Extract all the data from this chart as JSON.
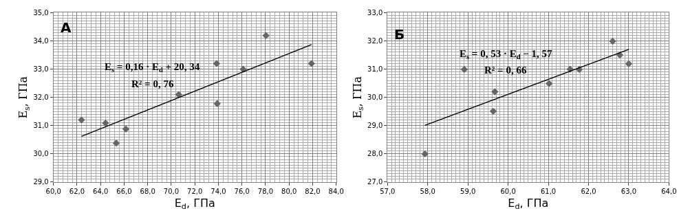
{
  "chart_data": [
    {
      "type": "scatter",
      "xlabel": "E$_{d}$, ГПа",
      "ylabel": "E$_{s}$, ГПа",
      "annotations": [
        "А",
        "E$_{s}$ = 0,16 · E$_{d}$ + 20, 34",
        "R² = 0, 76"
      ],
      "series": [
        {
          "color": "#666666",
          "marker": "diamond",
          "x": [
            62.38,
            64.42,
            65.33,
            66.15,
            70.63,
            73.85,
            73.9,
            76.1,
            78.04,
            81.9
          ],
          "values": [
            31.2,
            31.09,
            30.38,
            30.88,
            32.1,
            33.2,
            31.78,
            33.0,
            34.19,
            33.2
          ]
        },
        {
          "type": "line",
          "color": "#000000",
          "x": [
            62.38,
            81.9
          ],
          "values": [
            30.62,
            33.87
          ]
        }
      ],
      "xlim": [
        60,
        84
      ],
      "ylim": [
        29,
        35
      ],
      "xticks": [
        {
          "value": 60,
          "label": "60,0"
        },
        {
          "value": 62,
          "label": "62,0"
        },
        {
          "value": 64,
          "label": "64,0"
        },
        {
          "value": 66,
          "label": "66,0"
        },
        {
          "value": 68,
          "label": "68,0"
        },
        {
          "value": 70,
          "label": "70,0"
        },
        {
          "value": 72,
          "label": "72,0"
        },
        {
          "value": 74,
          "label": "74,0"
        },
        {
          "value": 76,
          "label": "76,0"
        },
        {
          "value": 78,
          "label": "78,0"
        },
        {
          "value": 80,
          "label": "80,0"
        },
        {
          "value": 82,
          "label": "82,0"
        },
        {
          "value": 84,
          "label": "84,0"
        }
      ],
      "yticks": [
        {
          "value": 29,
          "label": "29,0"
        },
        {
          "value": 30,
          "label": "30,0"
        },
        {
          "value": 31,
          "label": "31,0"
        },
        {
          "value": 32,
          "label": "32,0"
        },
        {
          "value": 33,
          "label": "33,0"
        },
        {
          "value": 34,
          "label": "34,0"
        },
        {
          "value": 35,
          "label": "35,0"
        }
      ],
      "grid": true
    },
    {
      "type": "scatter",
      "xlabel": "E$_{d}$, ГПа",
      "ylabel": "E$_{s}$, ГПа",
      "annotations": [
        "Б",
        "E$_{s}$ = 0, 53 · E$_{d}$ − 1, 57",
        "R² = 0, 66"
      ],
      "series": [
        {
          "color": "#666666",
          "marker": "diamond",
          "x": [
            57.93,
            58.91,
            59.67,
            59.63,
            61.02,
            61.54,
            61.77,
            62.6,
            62.78,
            63.0
          ],
          "values": [
            28.0,
            30.99,
            30.2,
            29.51,
            30.49,
            31.0,
            30.99,
            31.99,
            31.5,
            31.19
          ]
        },
        {
          "type": "line",
          "color": "#000000",
          "x": [
            57.93,
            63.0
          ],
          "values": [
            29.01,
            31.7
          ]
        }
      ],
      "xlim": [
        57,
        64
      ],
      "ylim": [
        27,
        33
      ],
      "xticks": [
        {
          "value": 57,
          "label": "57,0"
        },
        {
          "value": 58,
          "label": "58,0"
        },
        {
          "value": 59,
          "label": "59,0"
        },
        {
          "value": 60,
          "label": "60,0"
        },
        {
          "value": 61,
          "label": "61,0"
        },
        {
          "value": 62,
          "label": "62,0"
        },
        {
          "value": 63,
          "label": "63,0"
        },
        {
          "value": 64,
          "label": "64,0"
        }
      ],
      "yticks": [
        {
          "value": 27,
          "label": "27,0"
        },
        {
          "value": 28,
          "label": "28,0"
        },
        {
          "value": 29,
          "label": "29,0"
        },
        {
          "value": 30,
          "label": "30,0"
        },
        {
          "value": 31,
          "label": "31,0"
        },
        {
          "value": 32,
          "label": "32,0"
        },
        {
          "value": 33,
          "label": "33,0"
        }
      ],
      "grid": true
    }
  ]
}
